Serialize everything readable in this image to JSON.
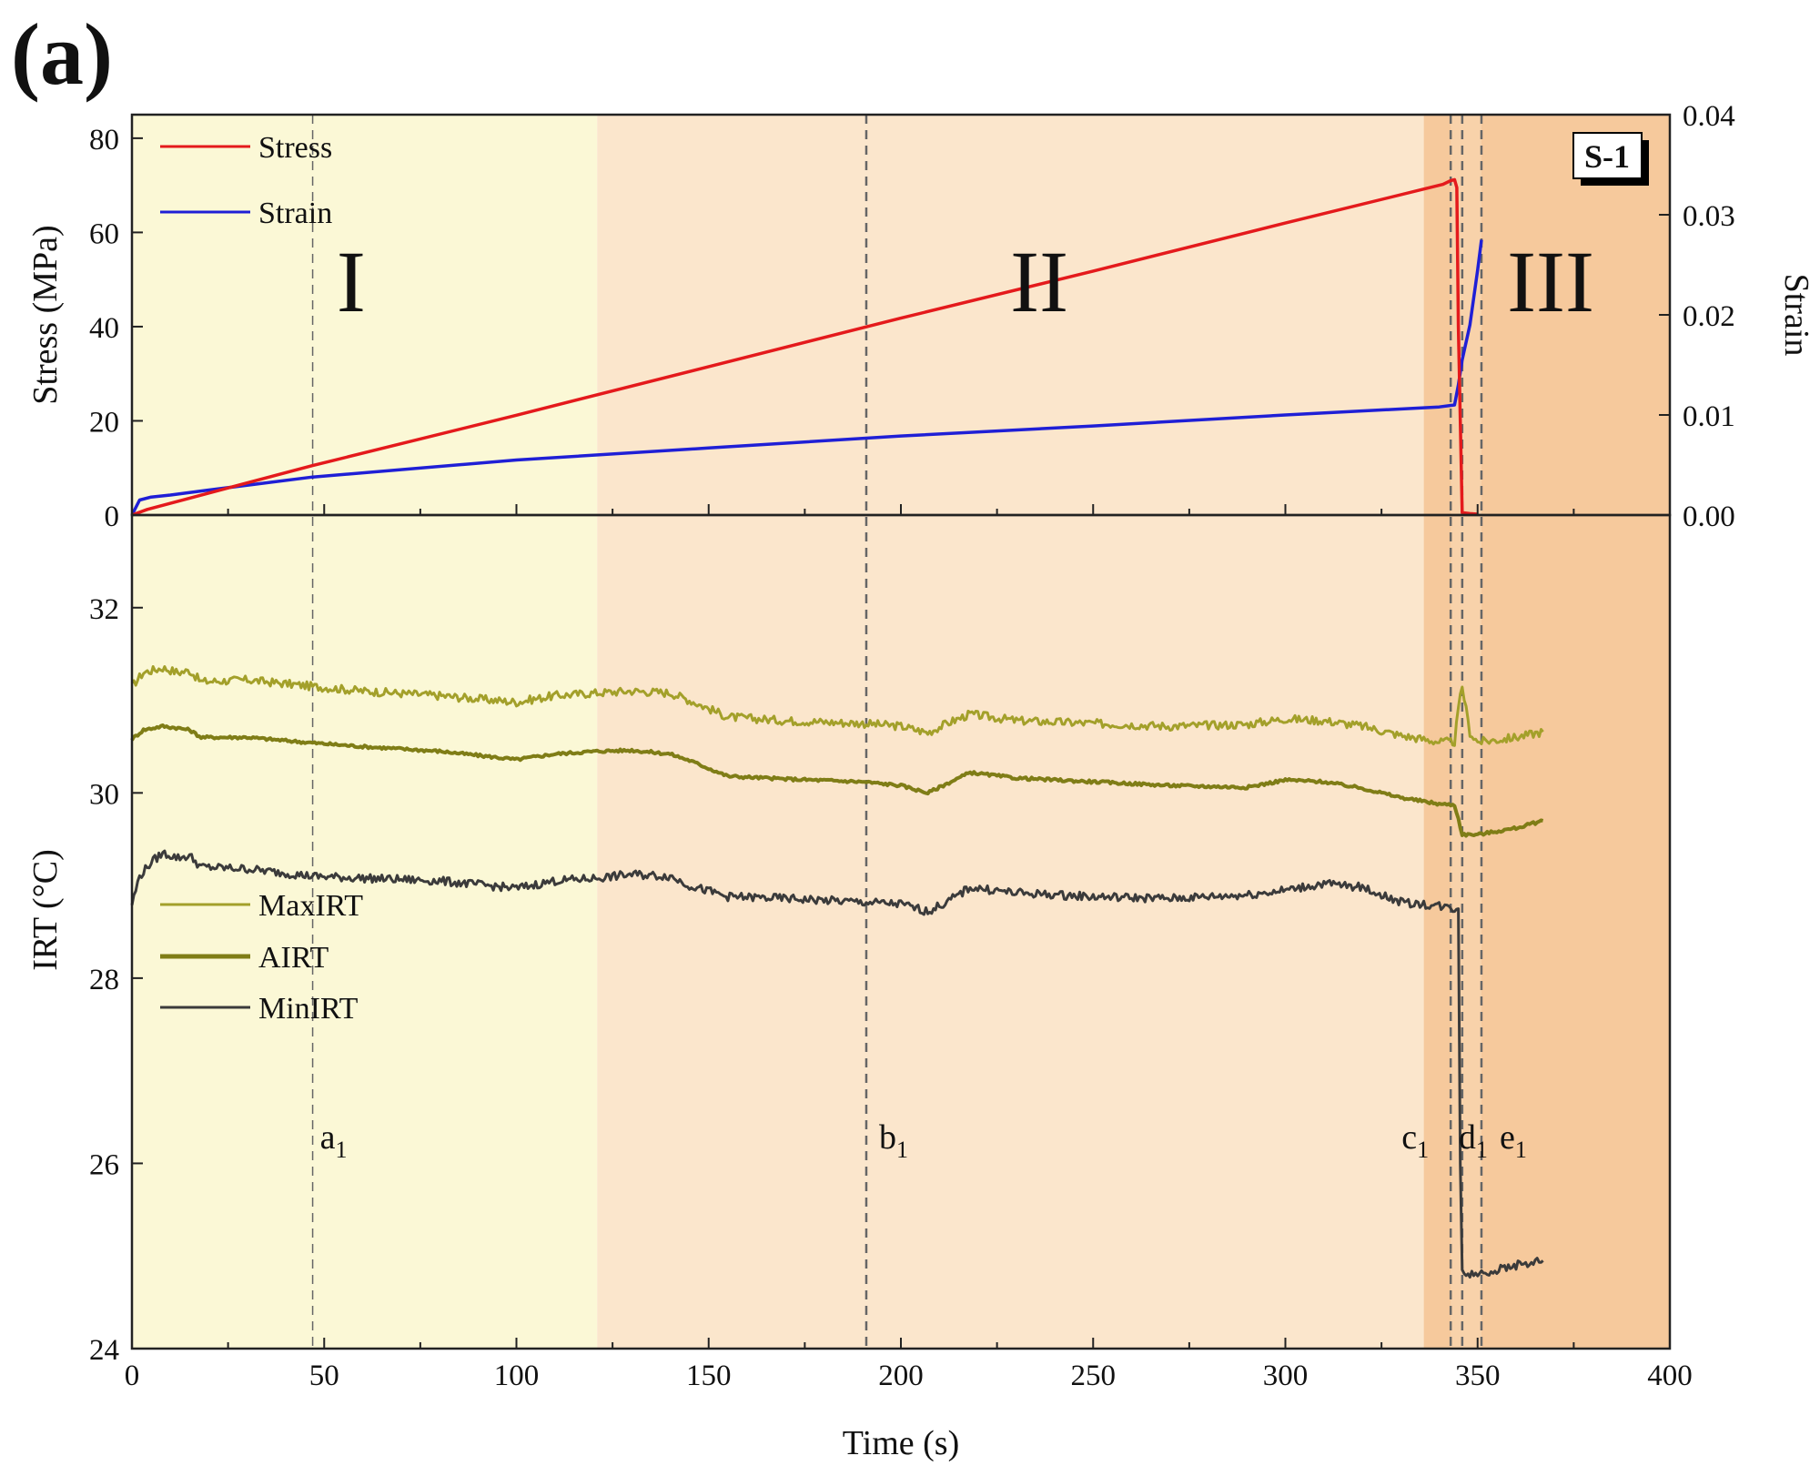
{
  "panel_label": "(a)",
  "sample_label": "S-1",
  "colors": {
    "stress": "#e41a1c",
    "strain": "#1f1fd6",
    "max_irt": "#a3a02a",
    "a_irt": "#7f7d16",
    "min_irt": "#3b3b3b",
    "stage_I_bg": "#fbf8d6",
    "stage_II_bg": "#fbe6cc",
    "stage_III_bg": "#f6c99c",
    "stage_III_core_bg": "#f8d2aa"
  },
  "chart_data": [
    {
      "type": "line",
      "panel": "top",
      "xlabel": "",
      "ylabel": "Stress (MPa)",
      "y2label": "Strain",
      "xlim": [
        0,
        400
      ],
      "ylim": [
        0,
        85
      ],
      "y2lim": [
        0,
        0.04
      ],
      "yticks": [
        "0",
        "20",
        "40",
        "60",
        "80"
      ],
      "y2ticks": [
        "0.00",
        "0.01",
        "0.02",
        "0.03",
        "0.04"
      ],
      "legend_position": "top-left",
      "annotations": [
        "I",
        "II",
        "III",
        "S-1"
      ],
      "series": [
        {
          "name": "Stress",
          "axis": "left",
          "x": [
            0,
            4,
            47,
            100,
            150,
            200,
            250,
            300,
            341,
            343,
            344,
            344.6,
            345,
            346,
            348,
            350
          ],
          "y": [
            0,
            1.2,
            10.5,
            21.2,
            31.5,
            41.8,
            51.8,
            62.0,
            70.2,
            71.0,
            71.2,
            69.5,
            40.0,
            0.5,
            0.3,
            0.2
          ]
        },
        {
          "name": "Strain",
          "axis": "right",
          "x": [
            0,
            2,
            5,
            10,
            20,
            47,
            100,
            150,
            200,
            250,
            300,
            340,
            344,
            345,
            346,
            348,
            350,
            351
          ],
          "y": [
            0,
            0.0015,
            0.0018,
            0.002,
            0.0025,
            0.0038,
            0.0055,
            0.0067,
            0.0079,
            0.0089,
            0.01,
            0.0108,
            0.011,
            0.013,
            0.0155,
            0.019,
            0.0245,
            0.0275
          ]
        }
      ]
    },
    {
      "type": "line",
      "panel": "bottom",
      "xlabel": "Time (s)",
      "ylabel": "IRT (°C)",
      "xlim": [
        0,
        400
      ],
      "ylim": [
        24,
        33
      ],
      "xticks": [
        "0",
        "50",
        "100",
        "150",
        "200",
        "250",
        "300",
        "350",
        "400"
      ],
      "yticks": [
        "24",
        "26",
        "28",
        "30",
        "32"
      ],
      "legend_position": "center-left",
      "stages": [
        {
          "label": "I",
          "x_range": [
            0,
            121
          ]
        },
        {
          "label": "II",
          "x_range": [
            121,
            336
          ]
        },
        {
          "label": "III",
          "x_range": [
            336,
            400
          ]
        }
      ],
      "event_lines": [
        {
          "label": "a",
          "subscript": "1",
          "x": 47
        },
        {
          "label": "b",
          "subscript": "1",
          "x": 191
        },
        {
          "label": "c",
          "subscript": "1",
          "x": 343
        },
        {
          "label": "d",
          "subscript": "1",
          "x": 346
        },
        {
          "label": "e",
          "subscript": "1",
          "x": 351
        }
      ],
      "series": [
        {
          "name": "MaxIRT",
          "x": [
            0,
            3,
            8,
            12,
            15,
            18,
            30,
            47,
            60,
            80,
            100,
            110,
            121,
            130,
            140,
            145,
            155,
            170,
            190,
            200,
            207,
            212,
            218,
            230,
            250,
            270,
            290,
            300,
            310,
            320,
            330,
            340,
            344,
            345,
            346,
            348,
            350,
            355,
            360,
            367
          ],
          "y": [
            31.15,
            31.3,
            31.35,
            31.3,
            31.32,
            31.2,
            31.22,
            31.15,
            31.1,
            31.05,
            30.98,
            31.05,
            31.08,
            31.1,
            31.08,
            31.0,
            30.82,
            30.78,
            30.75,
            30.72,
            30.65,
            30.75,
            30.85,
            30.78,
            30.75,
            30.72,
            30.74,
            30.8,
            30.78,
            30.72,
            30.62,
            30.55,
            30.55,
            30.9,
            31.15,
            30.65,
            30.55,
            30.57,
            30.6,
            30.66
          ]
        },
        {
          "name": "AIRT",
          "x": [
            0,
            3,
            8,
            12,
            15,
            18,
            30,
            47,
            60,
            80,
            100,
            110,
            121,
            130,
            140,
            145,
            155,
            170,
            190,
            200,
            207,
            212,
            218,
            230,
            250,
            270,
            290,
            300,
            310,
            320,
            330,
            340,
            344,
            345,
            346,
            350,
            360,
            367
          ],
          "y": [
            30.58,
            30.68,
            30.72,
            30.7,
            30.68,
            30.6,
            30.6,
            30.54,
            30.5,
            30.45,
            30.36,
            30.42,
            30.45,
            30.46,
            30.42,
            30.35,
            30.18,
            30.15,
            30.12,
            30.08,
            30.0,
            30.1,
            30.22,
            30.16,
            30.12,
            30.08,
            30.06,
            30.14,
            30.12,
            30.05,
            29.95,
            29.88,
            29.87,
            29.72,
            29.55,
            29.55,
            29.62,
            29.7
          ]
        },
        {
          "name": "MinIRT",
          "x": [
            0,
            2,
            5,
            8,
            12,
            15,
            18,
            30,
            47,
            60,
            80,
            100,
            110,
            121,
            130,
            140,
            145,
            155,
            170,
            190,
            200,
            207,
            212,
            218,
            230,
            250,
            270,
            290,
            300,
            310,
            320,
            330,
            340,
            344,
            345,
            345.5,
            346,
            348,
            355,
            360,
            367
          ],
          "y": [
            28.8,
            29.1,
            29.25,
            29.35,
            29.3,
            29.32,
            29.2,
            29.18,
            29.1,
            29.08,
            29.05,
            28.97,
            29.05,
            29.08,
            29.12,
            29.1,
            29.0,
            28.88,
            28.86,
            28.82,
            28.8,
            28.72,
            28.82,
            28.98,
            28.92,
            28.88,
            28.86,
            28.9,
            28.95,
            29.02,
            28.98,
            28.82,
            28.78,
            28.75,
            28.75,
            26.0,
            24.85,
            24.8,
            24.85,
            24.9,
            24.95
          ]
        }
      ]
    }
  ]
}
